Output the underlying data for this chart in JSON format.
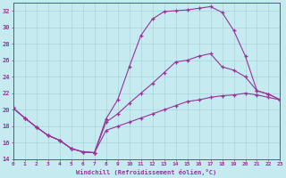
{
  "background_color": "#c5eaf0",
  "grid_color": "#b0d8e0",
  "line_color": "#993399",
  "xlabel": "Windchill (Refroidissement éolien,°C)",
  "xlim": [
    0,
    23
  ],
  "ylim": [
    14,
    33
  ],
  "yticks": [
    14,
    16,
    18,
    20,
    22,
    24,
    26,
    28,
    30,
    32
  ],
  "xticks": [
    0,
    1,
    2,
    3,
    4,
    5,
    6,
    7,
    8,
    9,
    10,
    11,
    12,
    13,
    14,
    15,
    16,
    17,
    18,
    19,
    20,
    21,
    22,
    23
  ],
  "line1_x": [
    0,
    1,
    2,
    3,
    4,
    5,
    6,
    7,
    8,
    9,
    10,
    11,
    12,
    13,
    14,
    15,
    16,
    17,
    18,
    19,
    20,
    21,
    22,
    23
  ],
  "line1_y": [
    20.2,
    19.0,
    17.9,
    16.9,
    16.3,
    15.3,
    14.9,
    14.8,
    18.9,
    21.2,
    25.2,
    29.0,
    31.0,
    31.9,
    32.0,
    32.1,
    32.3,
    32.5,
    31.8,
    29.6,
    26.5,
    22.3,
    21.9,
    21.2
  ],
  "line2_x": [
    0,
    1,
    2,
    3,
    4,
    5,
    6,
    7,
    8,
    9,
    10,
    11,
    12,
    13,
    14,
    15,
    16,
    17,
    18,
    19,
    20,
    21,
    22,
    23
  ],
  "line2_y": [
    20.2,
    19.0,
    17.9,
    16.9,
    16.3,
    15.3,
    14.9,
    14.8,
    18.5,
    19.5,
    20.8,
    22.0,
    23.2,
    24.5,
    25.8,
    26.0,
    26.5,
    26.8,
    25.2,
    24.8,
    24.0,
    22.3,
    21.9,
    21.2
  ],
  "line3_x": [
    0,
    1,
    2,
    3,
    4,
    5,
    6,
    7,
    8,
    9,
    10,
    11,
    12,
    13,
    14,
    15,
    16,
    17,
    18,
    19,
    20,
    21,
    22,
    23
  ],
  "line3_y": [
    20.2,
    19.0,
    17.9,
    16.9,
    16.3,
    15.3,
    14.9,
    14.8,
    17.5,
    18.0,
    18.5,
    19.0,
    19.5,
    20.0,
    20.5,
    21.0,
    21.2,
    21.5,
    21.7,
    21.8,
    22.0,
    21.8,
    21.5,
    21.2
  ]
}
